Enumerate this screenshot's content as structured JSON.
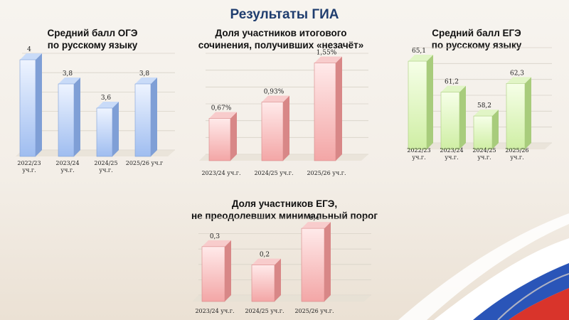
{
  "page": {
    "title": "Результаты ГИА",
    "colors": {
      "title": "#1f3d6e",
      "blue": "#9fbdf0",
      "red": "#f3a6a6",
      "green": "#cfeea4"
    }
  },
  "chart_data": [
    {
      "type": "bar",
      "title_lines": [
        "Средний балл ОГЭ",
        "по русскому языку"
      ],
      "categories": [
        [
          "2022/23",
          "уч.г."
        ],
        [
          "2023/24",
          "уч.г."
        ],
        [
          "2024/25",
          "уч.г."
        ],
        [
          "2025/26 уч.г"
        ]
      ],
      "values": [
        4,
        3.8,
        3.6,
        3.8
      ],
      "labels": [
        "4",
        "3,8",
        "3,6",
        "3,8"
      ],
      "ylim": [
        3.2,
        4
      ],
      "color": "blue",
      "grid": true
    },
    {
      "type": "bar",
      "title_lines": [
        "Доля участников итогового",
        "сочинения, получивших «незачёт»"
      ],
      "categories": [
        [
          "2023/24 уч.г."
        ],
        [
          "2024/25 уч.г."
        ],
        [
          "2025/26 уч.г."
        ]
      ],
      "values": [
        0.67,
        0.93,
        1.55
      ],
      "labels": [
        "0,67%",
        "0,93%",
        "1,55%"
      ],
      "ylim": [
        0,
        1.6
      ],
      "color": "red",
      "grid": true
    },
    {
      "type": "bar",
      "title_lines": [
        "Средний балл ЕГЭ",
        "по русскому языку"
      ],
      "categories": [
        [
          "2022/23",
          "уч.г."
        ],
        [
          "2023/24",
          "уч.г."
        ],
        [
          "2024/25",
          "уч.г."
        ],
        [
          "2025/26",
          "уч.г."
        ]
      ],
      "values": [
        65.1,
        61.2,
        58.2,
        62.3
      ],
      "labels": [
        "65,1",
        "61,2",
        "58,2",
        "62,3"
      ],
      "ylim": [
        54,
        66
      ],
      "color": "green",
      "grid": true
    },
    {
      "type": "bar",
      "title_lines": [
        "Доля участников ЕГЭ,",
        "не преодолевших минимальный порог"
      ],
      "categories": [
        [
          "2023/24 уч.г."
        ],
        [
          "2024/25 уч.г."
        ],
        [
          "2025/26 уч.г."
        ]
      ],
      "values": [
        0.3,
        0.2,
        0.4
      ],
      "labels": [
        "0,3",
        "0,2",
        "0,4"
      ],
      "ylim": [
        0,
        0.42
      ],
      "color": "red",
      "grid": true
    }
  ]
}
